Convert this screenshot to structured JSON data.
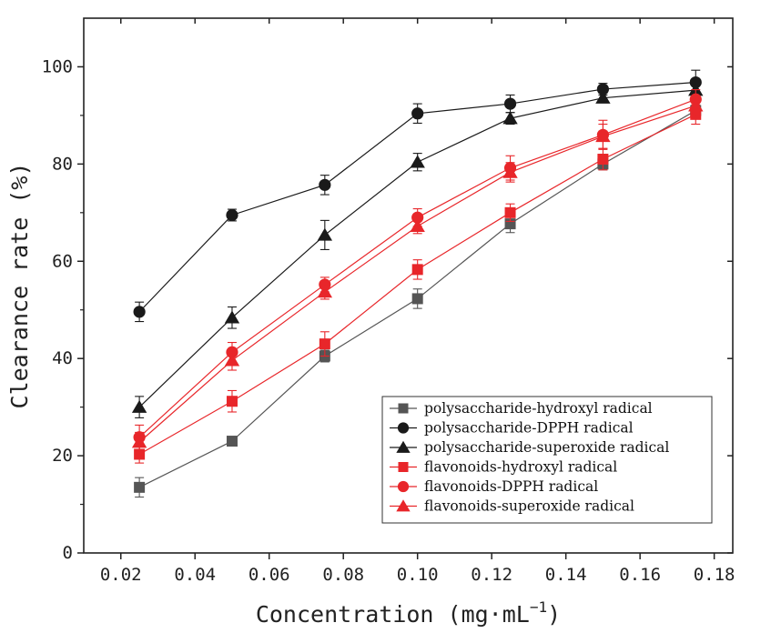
{
  "chart_data": {
    "type": "line",
    "xlabel": "Concentration (mg·mL",
    "xlabel_sup": "−1",
    "xlabel_close": ")",
    "ylabel": "Clearance rate (%)",
    "xlim": [
      0.01,
      0.185
    ],
    "ylim": [
      0,
      110
    ],
    "xticks": [
      0.02,
      0.04,
      0.06,
      0.08,
      0.1,
      0.12,
      0.14,
      0.16,
      0.18
    ],
    "xtick_labels": [
      "0.02",
      "0.04",
      "0.06",
      "0.08",
      "0.10",
      "0.12",
      "0.14",
      "0.16",
      "0.18"
    ],
    "yticks": [
      0,
      20,
      40,
      60,
      80,
      100
    ],
    "ytick_labels": [
      "0",
      "20",
      "40",
      "60",
      "80",
      "100"
    ],
    "grid": false,
    "legend_position": "bottom-right",
    "x": [
      0.025,
      0.05,
      0.075,
      0.1,
      0.125,
      0.15,
      0.175
    ],
    "series": [
      {
        "name": "polysaccharide-hydroxyl radical",
        "color": "#555555",
        "marker": "square",
        "values": [
          13.5,
          23.0,
          40.5,
          52.3,
          67.7,
          80.0,
          91.0
        ],
        "errors": [
          2.0,
          0.7,
          1.2,
          2.0,
          1.8,
          1.2,
          1.0
        ]
      },
      {
        "name": "polysaccharide-DPPH radical",
        "color": "#1a1a1a",
        "marker": "circle",
        "values": [
          49.6,
          69.5,
          75.7,
          90.4,
          92.4,
          95.4,
          96.8
        ],
        "errors": [
          2.0,
          1.2,
          2.0,
          2.0,
          1.8,
          1.2,
          2.5
        ]
      },
      {
        "name": "polysaccharide-superoxide radical",
        "color": "#1a1a1a",
        "marker": "triangle",
        "values": [
          30.0,
          48.4,
          65.4,
          80.4,
          89.4,
          93.6,
          95.2
        ],
        "errors": [
          2.2,
          2.2,
          3.0,
          1.8,
          1.2,
          1.0,
          1.0
        ]
      },
      {
        "name": "flavonoids-hydroxyl radical",
        "color": "#e8262a",
        "marker": "square",
        "values": [
          20.3,
          31.2,
          43.0,
          58.3,
          70.0,
          81.0,
          90.2
        ],
        "errors": [
          1.8,
          2.2,
          2.5,
          2.0,
          1.8,
          2.2,
          2.0
        ]
      },
      {
        "name": "flavonoids-DPPH radical",
        "color": "#e8262a",
        "marker": "circle",
        "values": [
          23.8,
          41.3,
          55.2,
          69.0,
          79.2,
          86.0,
          93.3
        ],
        "errors": [
          2.5,
          2.0,
          1.5,
          1.8,
          2.5,
          3.0,
          2.0
        ]
      },
      {
        "name": "flavonoids-superoxide radical",
        "color": "#e8262a",
        "marker": "triangle",
        "values": [
          22.8,
          39.6,
          53.7,
          67.2,
          78.3,
          85.7,
          92.0
        ],
        "errors": [
          2.0,
          2.0,
          1.5,
          1.5,
          2.0,
          2.5,
          2.0
        ]
      }
    ]
  }
}
